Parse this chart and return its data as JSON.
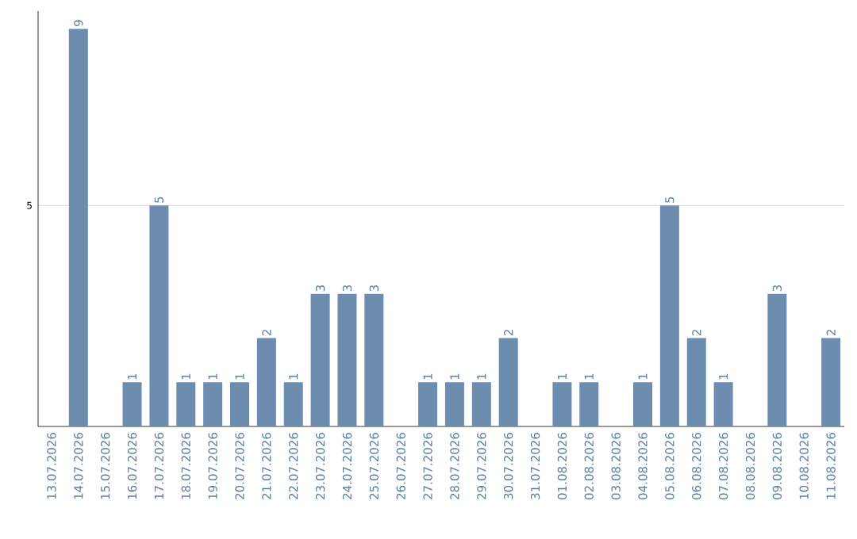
{
  "chart_data": {
    "type": "bar",
    "categories": [
      "13.07.2026",
      "14.07.2026",
      "15.07.2026",
      "16.07.2026",
      "17.07.2026",
      "18.07.2026",
      "19.07.2026",
      "20.07.2026",
      "21.07.2026",
      "22.07.2026",
      "23.07.2026",
      "24.07.2026",
      "25.07.2026",
      "26.07.2026",
      "27.07.2026",
      "28.07.2026",
      "29.07.2026",
      "30.07.2026",
      "31.07.2026",
      "01.08.2026",
      "02.08.2026",
      "03.08.2026",
      "04.08.2026",
      "05.08.2026",
      "06.08.2026",
      "07.08.2026",
      "08.08.2026",
      "09.08.2026",
      "10.08.2026",
      "11.08.2026"
    ],
    "values": [
      0,
      9,
      0,
      1,
      5,
      1,
      1,
      1,
      2,
      1,
      3,
      3,
      3,
      0,
      1,
      1,
      1,
      2,
      0,
      1,
      1,
      0,
      1,
      5,
      2,
      1,
      0,
      3,
      0,
      2
    ],
    "value_labels": [
      null,
      "9",
      null,
      "1",
      "5",
      "1",
      "1",
      "1",
      "2",
      "1",
      "3",
      "3",
      "3",
      null,
      "1",
      "1",
      "1",
      "2",
      null,
      "1",
      "1",
      null,
      "1",
      "5",
      "2",
      "1",
      null,
      "3",
      null,
      "2"
    ],
    "color": "#6d8db0",
    "ylim": [
      0,
      9.4
    ],
    "yticks": [
      5
    ],
    "grid": "y"
  }
}
